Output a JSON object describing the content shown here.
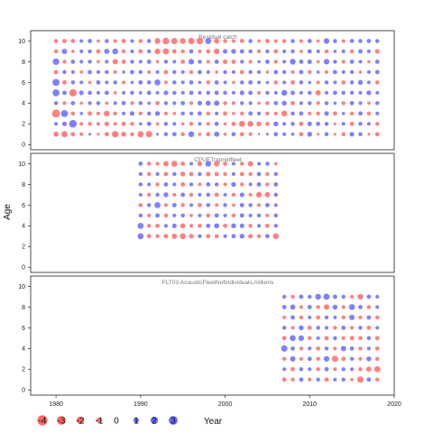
{
  "colors": {
    "negative": "#ff4f4f",
    "positive": "#4f4fff",
    "zero_text": "#000000"
  },
  "chart_data": {
    "type": "scatter",
    "subtype": "bubble",
    "ylabel": "Age",
    "xlabel": "Year",
    "xlim": [
      1977,
      2020
    ],
    "xticks": [
      1980,
      1990,
      2000,
      2010,
      2020
    ],
    "legend": {
      "placement": "bottom-left",
      "values": [
        -4,
        -3,
        -2,
        -1,
        0,
        1,
        2,
        3
      ],
      "labels": [
        "-4",
        "-3",
        "-2",
        "-1",
        "0",
        "1",
        "2",
        "3"
      ]
    },
    "panels": [
      {
        "title": "Residual catch",
        "ylim": [
          -0.5,
          11
        ],
        "yticks": [
          0,
          2,
          4,
          6,
          8,
          10
        ],
        "years": [
          1980,
          2018
        ],
        "ages": [
          1,
          10
        ],
        "residuals": [
          [
            -0.9,
            -1.4,
            -0.6,
            -0.4,
            0.2,
            -0.2,
            -0.6,
            -1.6,
            -0.8,
            -0.5,
            -1.4,
            -1.5,
            0.2,
            0.5,
            0.6,
            -0.5,
            1.2,
            -0.3,
            -0.6,
            0.9,
            -0.3,
            0.6,
            -0.6,
            -0.4,
            0.1,
            0.2,
            0.6,
            0.4,
            0.3,
            -0.6,
            0.8,
            -0.2,
            0.5,
            -0.2,
            -0.5,
            0.7,
            0.5,
            -0.2,
            -0.6
          ],
          [
            0.4,
            0.7,
            2.2,
            -0.4,
            -0.5,
            -0.4,
            -0.7,
            -0.4,
            -0.6,
            -0.5,
            0.3,
            0.6,
            -0.3,
            0.5,
            0.4,
            -0.3,
            -0.5,
            0.4,
            -0.4,
            0.6,
            -0.3,
            -0.6,
            -1.3,
            -1.2,
            -0.8,
            -0.5,
            0.8,
            0.4,
            0.5,
            -0.6,
            0.7,
            0.6,
            0.5,
            -0.2,
            0.4,
            -0.6,
            0.5,
            0.4,
            -0.5
          ],
          [
            -2.4,
            1.8,
            -0.5,
            0.3,
            -0.6,
            -0.4,
            -1.2,
            -0.5,
            0.4,
            0.7,
            -0.4,
            0.5,
            0.8,
            -0.4,
            -0.3,
            0.5,
            0.4,
            0.6,
            -0.5,
            0.4,
            -0.6,
            -0.3,
            -0.5,
            0.6,
            0.4,
            -0.5,
            -0.4,
            -1.2,
            0.5,
            0.6,
            -0.4,
            -0.5,
            0.7,
            -0.6,
            0.3,
            -0.5,
            0.6,
            -0.5,
            0.4
          ],
          [
            0.5,
            -0.4,
            0.6,
            -0.3,
            0.4,
            0.5,
            -0.3,
            0.4,
            0.6,
            -0.4,
            0.5,
            0.3,
            -0.6,
            0.5,
            0.4,
            0.6,
            -0.4,
            0.7,
            0.9,
            1.0,
            -0.5,
            -0.4,
            0.5,
            0.4,
            -0.3,
            -0.5,
            0.6,
            0.8,
            -0.6,
            0.4,
            0.5,
            -0.4,
            0.5,
            0.3,
            -0.5,
            0.6,
            0.4,
            -0.3,
            0.5
          ],
          [
            1.8,
            0.6,
            -2.0,
            0.7,
            0.5,
            0.4,
            0.6,
            -0.3,
            0.4,
            0.5,
            0.3,
            0.6,
            0.4,
            0.7,
            0.5,
            0.4,
            0.6,
            0.4,
            0.5,
            0.6,
            0.5,
            0.4,
            0.7,
            0.6,
            -0.4,
            0.5,
            0.4,
            1.2,
            0.6,
            0.4,
            0.5,
            -1.0,
            0.4,
            0.6,
            0.5,
            0.5,
            0.4,
            0.7,
            0.4
          ],
          [
            1.8,
            -0.6,
            0.5,
            0.4,
            -0.3,
            0.6,
            0.4,
            0.5,
            -0.4,
            0.3,
            0.6,
            0.5,
            1.3,
            -0.4,
            0.5,
            0.4,
            0.6,
            0.3,
            -0.5,
            0.6,
            0.4,
            -0.3,
            0.5,
            0.6,
            0.4,
            0.3,
            -0.5,
            0.4,
            -0.6,
            0.5,
            0.3,
            -0.4,
            0.5,
            0.4,
            -0.6,
            0.5,
            0.8,
            0.4,
            -0.5
          ],
          [
            -0.6,
            0.5,
            0.4,
            -0.3,
            0.6,
            0.4,
            0.5,
            -0.4,
            0.3,
            0.6,
            0.5,
            -0.4,
            0.4,
            -0.6,
            0.5,
            0.4,
            -0.5,
            0.6,
            0.4,
            -0.3,
            0.5,
            0.4,
            -0.6,
            0.5,
            0.4,
            -0.3,
            0.6,
            0.5,
            -0.4,
            0.6,
            -0.5,
            0.3,
            -0.4,
            0.6,
            0.4,
            0.5,
            -0.3,
            0.4,
            0.6
          ],
          [
            1.6,
            -0.5,
            0.6,
            0.4,
            0.5,
            -0.3,
            0.4,
            -1.0,
            -0.6,
            0.5,
            0.4,
            0.6,
            -0.3,
            0.5,
            0.4,
            -0.6,
            1.1,
            0.5,
            -0.4,
            0.6,
            -0.7,
            -0.6,
            0.5,
            -0.4,
            0.3,
            0.6,
            -0.5,
            0.4,
            1.2,
            0.6,
            0.7,
            -0.3,
            1.1,
            0.5,
            -0.4,
            0.6,
            0.4,
            -0.3,
            0.6
          ],
          [
            -0.5,
            1.0,
            -0.3,
            0.4,
            0.5,
            -0.6,
            0.9,
            1.2,
            -0.5,
            0.4,
            -0.6,
            0.5,
            -1.1,
            -1.4,
            -0.6,
            -0.5,
            0.6,
            -0.4,
            -0.6,
            -1.1,
            0.7,
            0.8,
            0.6,
            0.5,
            -0.4,
            0.5,
            -0.6,
            0.4,
            0.5,
            -0.3,
            0.6,
            0.4,
            -0.5,
            0.3,
            0.4,
            -0.5,
            0.6,
            0.4,
            -0.7
          ],
          [
            -0.5,
            -0.6,
            -0.6,
            0.4,
            0.6,
            -0.3,
            0.5,
            -0.4,
            -0.6,
            0.4,
            -0.5,
            0.5,
            -1.2,
            -1.6,
            -1.4,
            -1.2,
            -1.5,
            -1.6,
            1.3,
            -0.9,
            -0.5,
            -0.4,
            -0.6,
            0.5,
            -0.3,
            -0.6,
            -0.4,
            -0.5,
            0.5,
            -0.4,
            0.6,
            -0.3,
            1.1,
            0.5,
            -0.4,
            0.6,
            0.5,
            0.6,
            0.5
          ]
        ]
      },
      {
        "title": "CPUETrapnetfleet",
        "ylim": [
          -0.5,
          11
        ],
        "yticks": [
          0,
          2,
          4,
          6,
          8,
          10
        ],
        "years": [
          1990,
          2006
        ],
        "ages": [
          3,
          9
        ],
        "residuals": [
          [
            1.3,
            -0.6,
            -0.5,
            -0.7,
            -1.0,
            -1.2,
            -0.8,
            0.5,
            -0.6,
            -0.5,
            0.4,
            0.6,
            0.8,
            -0.7,
            -0.5,
            0.6,
            -1.2
          ],
          [
            1.3,
            -0.5,
            -0.6,
            0.4,
            0.7,
            -0.9,
            -0.4,
            -0.5,
            0.6,
            0.9,
            -0.6,
            0.8,
            0.7,
            -0.5,
            0.4,
            -0.6,
            0.5
          ],
          [
            0.5,
            -0.4,
            0.6,
            -0.5,
            0.4,
            0.5,
            -0.3,
            0.4,
            -0.5,
            0.6,
            0.4,
            -0.5,
            0.6,
            0.4,
            0.5,
            -0.4,
            0.5
          ],
          [
            -0.5,
            0.5,
            1.3,
            -0.4,
            0.6,
            -0.5,
            0.4,
            -0.6,
            0.5,
            -0.4,
            0.5,
            -0.3,
            0.6,
            0.5,
            -0.4,
            0.6,
            0.4
          ],
          [
            0.4,
            -0.5,
            0.5,
            0.8,
            -0.4,
            0.6,
            -0.5,
            0.4,
            0.5,
            -0.6,
            0.4,
            -0.5,
            0.7,
            -0.4,
            -1.1,
            -1.0,
            0.5
          ],
          [
            0.5,
            0.4,
            -0.5,
            0.6,
            0.4,
            -0.6,
            0.5,
            -0.4,
            0.6,
            0.5,
            -0.4,
            0.8,
            -0.5,
            0.4,
            0.6,
            -0.5,
            0.6
          ],
          [
            0.4,
            -0.5,
            0.4,
            -0.6,
            0.5,
            -0.8,
            -0.6,
            0.5,
            -0.7,
            -0.6,
            -0.5,
            0.4,
            -0.6,
            -0.5,
            0.6,
            -0.5,
            0.5
          ],
          [
            0.6,
            -0.5,
            -0.4,
            -1.0,
            -1.3,
            -0.6,
            0.4,
            -0.8,
            1.2,
            -1.1,
            -0.6,
            0.4,
            -0.5,
            -1.0,
            0.4,
            0.5,
            -0.3
          ]
        ]
      },
      {
        "title": "FLT03:AcousticFleetNofIndividuals,millions",
        "ylim": [
          -0.5,
          11
        ],
        "yticks": [
          0,
          2,
          4,
          6,
          8,
          10
        ],
        "years": [
          2007,
          2018
        ],
        "ages": [
          1,
          9
        ],
        "residuals": [
          [
            -0.6,
            -0.5,
            0.6,
            -0.4,
            0.5,
            -0.6,
            0.4,
            0.5,
            -0.3,
            -1.5,
            0.6,
            -0.5
          ],
          [
            0.4,
            -0.6,
            0.5,
            0.4,
            -0.5,
            0.6,
            -0.4,
            0.5,
            0.4,
            -0.5,
            -0.9,
            -1.3
          ],
          [
            -0.5,
            1.0,
            -0.4,
            0.6,
            -0.5,
            1.1,
            -1.4,
            -0.6,
            0.5,
            -0.4,
            0.8,
            -0.5
          ],
          [
            1.5,
            0.6,
            -0.5,
            0.4,
            -0.6,
            0.5,
            -0.4,
            1.0,
            0.6,
            -0.5,
            0.4,
            -0.6
          ],
          [
            -0.6,
            1.3,
            1.1,
            -0.5,
            0.4,
            -0.6,
            0.5,
            -0.4,
            -0.6,
            -0.5,
            0.5,
            -0.6
          ],
          [
            0.5,
            -0.4,
            0.8,
            -0.6,
            0.5,
            0.4,
            -0.5,
            0.6,
            -0.4,
            0.5,
            -0.6,
            0.4
          ],
          [
            -0.4,
            0.6,
            -0.5,
            0.4,
            -0.6,
            0.5,
            0.4,
            -0.5,
            1.0,
            -0.4,
            0.6,
            -0.5
          ],
          [
            0.6,
            0.9,
            -0.4,
            0.6,
            -0.5,
            -1.0,
            0.8,
            -0.4,
            1.3,
            0.6,
            -0.5,
            0.4
          ],
          [
            0.5,
            -0.4,
            0.6,
            0.5,
            1.2,
            1.4,
            0.6,
            0.5,
            -0.4,
            -1.1,
            0.6,
            0.4
          ]
        ]
      }
    ]
  }
}
